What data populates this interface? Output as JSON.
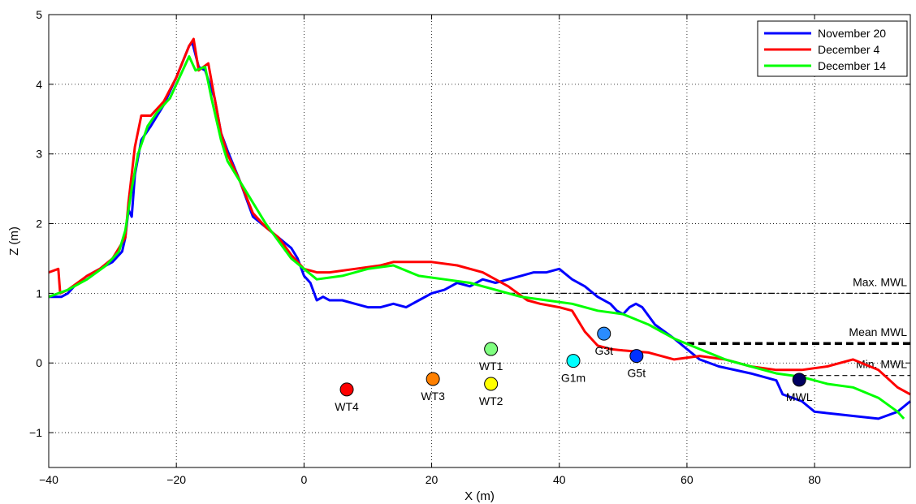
{
  "chart_data": {
    "type": "line",
    "xlabel": "X (m)",
    "ylabel": "Z (m)",
    "xlim": [
      -40,
      95
    ],
    "ylim": [
      -1.5,
      5
    ],
    "xticks": [
      -40,
      -20,
      0,
      20,
      40,
      60,
      80
    ],
    "yticks": [
      -1,
      0,
      1,
      2,
      3,
      4,
      5
    ],
    "xtick_labels": [
      "−40",
      "−20",
      "0",
      "20",
      "40",
      "60",
      "80"
    ],
    "ytick_labels": [
      "−1",
      "0",
      "1",
      "2",
      "3",
      "4",
      "5"
    ],
    "grid": true,
    "legend_position": "top-right",
    "series": [
      {
        "name": "November 20",
        "color": "#0000ff",
        "points": [
          [
            -40,
            0.95
          ],
          [
            -38,
            0.95
          ],
          [
            -37,
            1.0
          ],
          [
            -36,
            1.1
          ],
          [
            -34,
            1.25
          ],
          [
            -32,
            1.35
          ],
          [
            -30,
            1.45
          ],
          [
            -28.5,
            1.6
          ],
          [
            -28,
            1.8
          ],
          [
            -27.5,
            2.2
          ],
          [
            -27,
            2.1
          ],
          [
            -26.5,
            2.7
          ],
          [
            -25.5,
            3.2
          ],
          [
            -24,
            3.4
          ],
          [
            -22,
            3.7
          ],
          [
            -20,
            4.1
          ],
          [
            -18,
            4.55
          ],
          [
            -17.5,
            4.6
          ],
          [
            -16.5,
            4.25
          ],
          [
            -15.5,
            4.2
          ],
          [
            -14,
            3.8
          ],
          [
            -13,
            3.3
          ],
          [
            -12,
            3.05
          ],
          [
            -10,
            2.6
          ],
          [
            -8,
            2.1
          ],
          [
            -6,
            1.95
          ],
          [
            -4,
            1.8
          ],
          [
            -2,
            1.65
          ],
          [
            -1,
            1.5
          ],
          [
            0,
            1.25
          ],
          [
            1,
            1.15
          ],
          [
            2,
            0.9
          ],
          [
            3,
            0.95
          ],
          [
            4,
            0.9
          ],
          [
            6,
            0.9
          ],
          [
            8,
            0.85
          ],
          [
            10,
            0.8
          ],
          [
            12,
            0.8
          ],
          [
            14,
            0.85
          ],
          [
            16,
            0.8
          ],
          [
            18,
            0.9
          ],
          [
            20,
            1.0
          ],
          [
            22,
            1.05
          ],
          [
            24,
            1.15
          ],
          [
            26,
            1.1
          ],
          [
            28,
            1.2
          ],
          [
            30,
            1.15
          ],
          [
            32,
            1.2
          ],
          [
            34,
            1.25
          ],
          [
            36,
            1.3
          ],
          [
            38,
            1.3
          ],
          [
            40,
            1.35
          ],
          [
            42,
            1.2
          ],
          [
            44,
            1.1
          ],
          [
            46,
            0.95
          ],
          [
            48,
            0.85
          ],
          [
            49,
            0.75
          ],
          [
            50,
            0.7
          ],
          [
            51,
            0.8
          ],
          [
            52,
            0.85
          ],
          [
            53,
            0.8
          ],
          [
            55,
            0.55
          ],
          [
            58,
            0.35
          ],
          [
            60,
            0.2
          ],
          [
            62,
            0.05
          ],
          [
            65,
            -0.05
          ],
          [
            70,
            -0.15
          ],
          [
            74,
            -0.25
          ],
          [
            75,
            -0.45
          ],
          [
            78,
            -0.55
          ],
          [
            80,
            -0.7
          ],
          [
            85,
            -0.75
          ],
          [
            90,
            -0.8
          ],
          [
            93,
            -0.7
          ],
          [
            95,
            -0.55
          ]
        ]
      },
      {
        "name": "December 4",
        "color": "#ff0000",
        "points": [
          [
            -40,
            1.3
          ],
          [
            -38.5,
            1.35
          ],
          [
            -38.2,
            1.0
          ],
          [
            -37,
            1.05
          ],
          [
            -34,
            1.25
          ],
          [
            -32,
            1.35
          ],
          [
            -30,
            1.5
          ],
          [
            -29,
            1.65
          ],
          [
            -28,
            1.8
          ],
          [
            -27.5,
            2.3
          ],
          [
            -26.5,
            3.1
          ],
          [
            -25.5,
            3.55
          ],
          [
            -24,
            3.55
          ],
          [
            -22,
            3.75
          ],
          [
            -20,
            4.1
          ],
          [
            -18,
            4.55
          ],
          [
            -17.3,
            4.65
          ],
          [
            -16.5,
            4.2
          ],
          [
            -15,
            4.3
          ],
          [
            -14,
            3.8
          ],
          [
            -13,
            3.3
          ],
          [
            -12,
            3.0
          ],
          [
            -10,
            2.6
          ],
          [
            -8,
            2.15
          ],
          [
            -6,
            1.95
          ],
          [
            -4,
            1.8
          ],
          [
            -2,
            1.55
          ],
          [
            0,
            1.35
          ],
          [
            2,
            1.3
          ],
          [
            4,
            1.3
          ],
          [
            8,
            1.35
          ],
          [
            12,
            1.4
          ],
          [
            14,
            1.45
          ],
          [
            16,
            1.45
          ],
          [
            18,
            1.45
          ],
          [
            20,
            1.45
          ],
          [
            24,
            1.4
          ],
          [
            28,
            1.3
          ],
          [
            32,
            1.1
          ],
          [
            35,
            0.9
          ],
          [
            37,
            0.85
          ],
          [
            40,
            0.8
          ],
          [
            42,
            0.75
          ],
          [
            44,
            0.45
          ],
          [
            46,
            0.25
          ],
          [
            48,
            0.2
          ],
          [
            50,
            0.18
          ],
          [
            54,
            0.15
          ],
          [
            58,
            0.05
          ],
          [
            62,
            0.1
          ],
          [
            66,
            0.05
          ],
          [
            70,
            -0.05
          ],
          [
            74,
            -0.1
          ],
          [
            78,
            -0.1
          ],
          [
            82,
            -0.05
          ],
          [
            86,
            0.05
          ],
          [
            90,
            -0.1
          ],
          [
            93,
            -0.35
          ],
          [
            95,
            -0.45
          ]
        ]
      },
      {
        "name": "December 14",
        "color": "#00ff00",
        "points": [
          [
            -40,
            0.95
          ],
          [
            -37,
            1.05
          ],
          [
            -34,
            1.2
          ],
          [
            -31,
            1.4
          ],
          [
            -29,
            1.6
          ],
          [
            -28,
            1.9
          ],
          [
            -27,
            2.5
          ],
          [
            -26,
            3.0
          ],
          [
            -24.5,
            3.4
          ],
          [
            -23,
            3.6
          ],
          [
            -21,
            3.8
          ],
          [
            -19,
            4.2
          ],
          [
            -18,
            4.4
          ],
          [
            -17,
            4.2
          ],
          [
            -15.5,
            4.25
          ],
          [
            -14.5,
            3.8
          ],
          [
            -13,
            3.2
          ],
          [
            -12,
            2.9
          ],
          [
            -10,
            2.6
          ],
          [
            -8,
            2.3
          ],
          [
            -6,
            2.0
          ],
          [
            -4,
            1.75
          ],
          [
            -2,
            1.5
          ],
          [
            0,
            1.35
          ],
          [
            2,
            1.2
          ],
          [
            6,
            1.25
          ],
          [
            10,
            1.35
          ],
          [
            14,
            1.4
          ],
          [
            18,
            1.25
          ],
          [
            22,
            1.2
          ],
          [
            26,
            1.15
          ],
          [
            30,
            1.05
          ],
          [
            34,
            0.95
          ],
          [
            38,
            0.9
          ],
          [
            42,
            0.85
          ],
          [
            46,
            0.75
          ],
          [
            50,
            0.7
          ],
          [
            54,
            0.55
          ],
          [
            58,
            0.35
          ],
          [
            62,
            0.2
          ],
          [
            66,
            0.05
          ],
          [
            70,
            -0.05
          ],
          [
            74,
            -0.15
          ],
          [
            78,
            -0.2
          ],
          [
            82,
            -0.3
          ],
          [
            86,
            -0.35
          ],
          [
            90,
            -0.5
          ],
          [
            93,
            -0.7
          ],
          [
            94,
            -0.8
          ]
        ]
      }
    ],
    "water_levels": [
      {
        "label": "Max. MWL",
        "value": 1.0,
        "style": "dash-dot",
        "x_start": 30
      },
      {
        "label": "Mean MWL",
        "value": 0.28,
        "style": "thick-dash",
        "x_start": 60
      },
      {
        "label": "Min. MWL",
        "value": -0.18,
        "style": "dash",
        "x_start": 78
      }
    ],
    "markers": [
      {
        "label": "WT4",
        "x": 6.7,
        "y": -0.38,
        "color": "#ff0000"
      },
      {
        "label": "WT3",
        "x": 20.2,
        "y": -0.23,
        "color": "#ff8000"
      },
      {
        "label": "WT1",
        "x": 29.3,
        "y": 0.2,
        "color": "#80ff80"
      },
      {
        "label": "WT2",
        "x": 29.3,
        "y": -0.3,
        "color": "#ffff00"
      },
      {
        "label": "G1m",
        "x": 42.2,
        "y": 0.03,
        "color": "#00ffff"
      },
      {
        "label": "G3t",
        "x": 47.0,
        "y": 0.42,
        "color": "#2a8cff"
      },
      {
        "label": "G5t",
        "x": 52.1,
        "y": 0.1,
        "color": "#0030ff"
      },
      {
        "label": "MWL",
        "x": 77.6,
        "y": -0.24,
        "color": "#000060"
      }
    ]
  }
}
